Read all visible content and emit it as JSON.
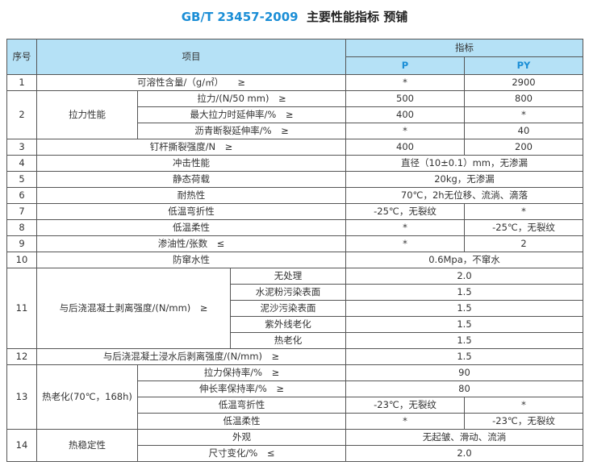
{
  "title": {
    "code": "GB/T 23457-2009",
    "text": "主要性能指标 预铺"
  },
  "header": {
    "seq": "序号",
    "item": "项目",
    "index": "指标",
    "p": "P",
    "py": "PY"
  },
  "rows": {
    "r1": {
      "seq": "1",
      "item": "可溶性含量/（g/㎡）　　≥",
      "p": "*",
      "py": "2900"
    },
    "r2": {
      "seq": "2",
      "group": "拉力性能",
      "subs": [
        {
          "item": "拉力/(N/50 mm)　≥",
          "p": "500",
          "py": "800"
        },
        {
          "item": "最大拉力时延伸率/%　≥",
          "p": "400",
          "py": "*"
        },
        {
          "item": "沥青断裂延伸率/%　≥",
          "p": "*",
          "py": "40"
        }
      ]
    },
    "r3": {
      "seq": "3",
      "item": "钉杆撕裂强度/N　≥",
      "p": "400",
      "py": "200"
    },
    "r4": {
      "seq": "4",
      "item": "冲击性能",
      "value": "直径（10±0.1）mm，无渗漏"
    },
    "r5": {
      "seq": "5",
      "item": "静态荷载",
      "value": "20kg，无渗漏"
    },
    "r6": {
      "seq": "6",
      "item": "耐热性",
      "value": "70℃，2h无位移、流淌、滴落"
    },
    "r7": {
      "seq": "7",
      "item": "低温弯折性",
      "p": "-25℃，无裂纹",
      "py": "*"
    },
    "r8": {
      "seq": "8",
      "item": "低温柔性",
      "p": "*",
      "py": "-25℃，无裂纹"
    },
    "r9": {
      "seq": "9",
      "item": "渗油性/张数　≤",
      "p": "*",
      "py": "2"
    },
    "r10": {
      "seq": "10",
      "item": "防窜水性",
      "value": "0.6Mpa，不窜水"
    },
    "r11": {
      "seq": "11",
      "group": "与后浇混凝土剥离强度/(N/mm)　≥",
      "subs": [
        {
          "item": "无处理",
          "value": "2.0"
        },
        {
          "item": "水泥粉污染表面",
          "value": "1.5"
        },
        {
          "item": "泥沙污染表面",
          "value": "1.5"
        },
        {
          "item": "紫外线老化",
          "value": "1.5"
        },
        {
          "item": "热老化",
          "value": "1.5"
        }
      ]
    },
    "r12": {
      "seq": "12",
      "item": "与后浇混凝土浸水后剥离强度/(N/mm)　≥",
      "value": "1.5"
    },
    "r13": {
      "seq": "13",
      "group": "热老化(70℃，168h)",
      "subs": [
        {
          "item": "拉力保持率/%　≥",
          "value": "90"
        },
        {
          "item": "伸长率保持率/%　≥",
          "value": "80"
        },
        {
          "item": "低温弯折性",
          "p": "-23℃，无裂纹",
          "py": "*"
        },
        {
          "item": "低温柔性",
          "p": "*",
          "py": "-23℃，无裂纹"
        }
      ]
    },
    "r14": {
      "seq": "14",
      "group": "热稳定性",
      "subs": [
        {
          "item": "外观",
          "value": "无起皱、滑动、流淌"
        },
        {
          "item": "尺寸变化/%　≤",
          "value": "2.0"
        }
      ]
    }
  },
  "colors": {
    "accent": "#1b8ed6",
    "header_bg": "#b5e1f6"
  }
}
